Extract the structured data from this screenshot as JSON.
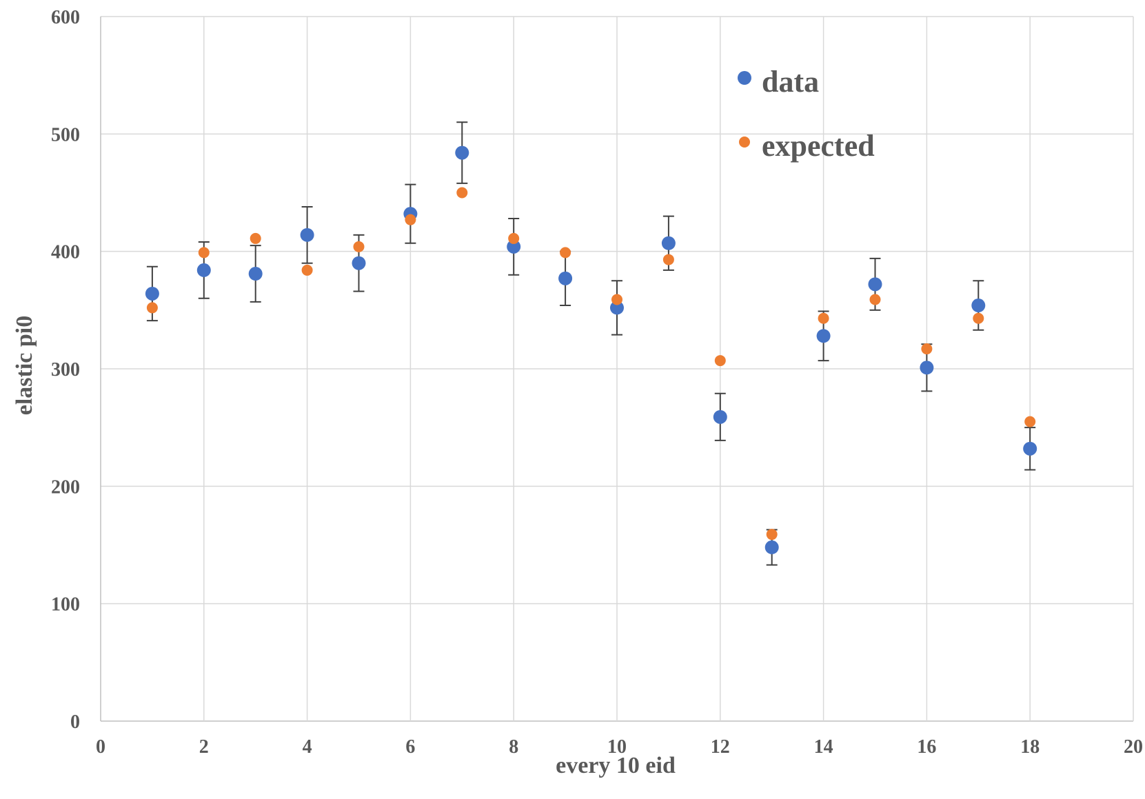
{
  "chart_data": {
    "type": "scatter",
    "xlabel": "every 10 eid",
    "ylabel": "elastic pi0",
    "xlim": [
      0,
      20
    ],
    "ylim": [
      0,
      600
    ],
    "xticks": [
      0,
      2,
      4,
      6,
      8,
      10,
      12,
      14,
      16,
      18,
      20
    ],
    "yticks": [
      0,
      100,
      200,
      300,
      400,
      500,
      600
    ],
    "grid": true,
    "legend_position": "top-right",
    "series": [
      {
        "name": "data",
        "color": "#4472C4",
        "x": [
          1,
          2,
          3,
          4,
          5,
          6,
          7,
          8,
          9,
          10,
          11,
          12,
          13,
          14,
          15,
          16,
          17,
          18
        ],
        "y": [
          364,
          384,
          381,
          414,
          390,
          432,
          484,
          404,
          377,
          352,
          407,
          259,
          148,
          328,
          372,
          301,
          354,
          232
        ],
        "error": [
          23,
          24,
          24,
          24,
          24,
          25,
          26,
          24,
          23,
          23,
          23,
          20,
          15,
          21,
          22,
          20,
          21,
          18
        ]
      },
      {
        "name": "expected",
        "color": "#ED7D31",
        "x": [
          1,
          2,
          3,
          4,
          5,
          6,
          7,
          8,
          9,
          10,
          11,
          12,
          13,
          14,
          15,
          16,
          17,
          18
        ],
        "y": [
          352,
          399,
          411,
          384,
          404,
          427,
          450,
          411,
          399,
          359,
          393,
          307,
          159,
          343,
          359,
          317,
          343,
          255
        ]
      }
    ]
  }
}
